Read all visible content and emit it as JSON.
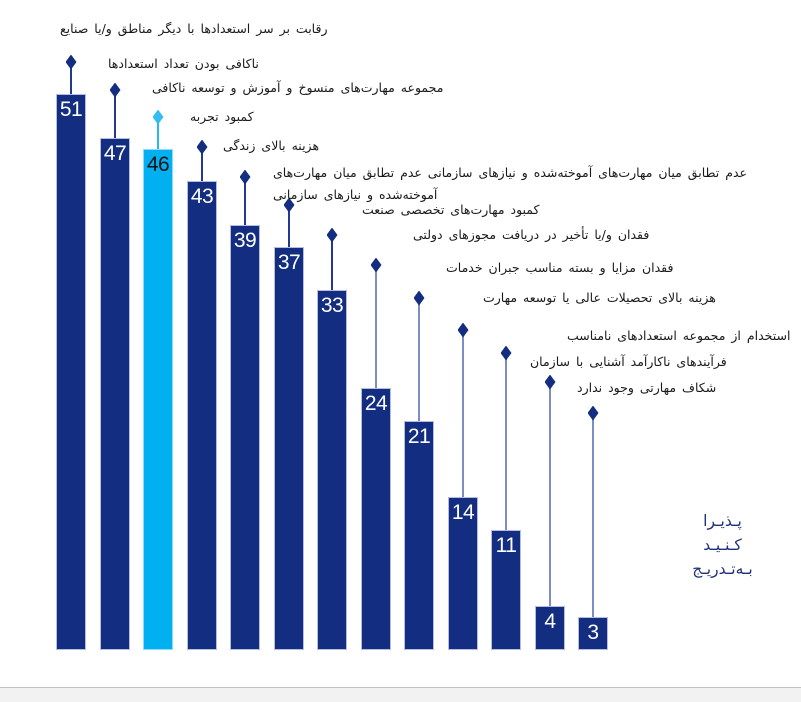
{
  "chart_data": {
    "type": "bar",
    "title": "",
    "orientation": "vertical",
    "grid": false,
    "legend": false,
    "ylim": [
      0,
      51
    ],
    "categories": [
      "رقابت بر سر استعدادها با دیگر مناطق و/یا صنایع",
      "ناکافی بودن تعداد استعدادها",
      "مجموعه مهارت‌های منسوخ و آموزش و توسعه ناکافی",
      "کمبود تجربه",
      "هزینه بالای زندگی",
      "عدم تطابق میان مهارت‌های آموخته‌شده و نیازهای سازمانی عدم تطابق میان مهارت‌های آموخته‌شده و نیازهای سازمانی",
      "کمبود مهارت‌های تخصصی صنعت",
      "فقدان و/یا تأخیر در دریافت مجوزهای دولتی",
      "فقدان مزایا و بسته مناسب جبران خدمات",
      "هزینه بالای تحصیلات عالی یا توسعه مهارت",
      "استخدام از مجموعه استعدادهای نامناسب",
      "فرآیندهای ناکارآمد آشنایی با سازمان",
      "شکاف مهارتی وجود ندارد"
    ],
    "values": [
      51,
      47,
      46,
      43,
      39,
      37,
      33,
      24,
      21,
      14,
      11,
      4,
      3
    ],
    "highlight_index": 2,
    "highlighted_category": "مجموعه مهارت‌های منسوخ و آموزش و توسعه ناکافی",
    "marker": "diamond",
    "annotation": {
      "lines": [
        "پـذیـرا",
        "کـنـیـد",
        "بـه‌تـدریـج"
      ],
      "position": "bottom-right"
    }
  },
  "colors": {
    "bar": "#132d80",
    "bar_highlight": "#00b0f0",
    "diamond": "#132d80",
    "diamond_highlight": "#33bdf3",
    "stem_dark": "#24388f",
    "stem_light": "#7d8cc7",
    "stem_highlight": "#29b6f2",
    "value_on_bar": "#ffffff",
    "value_on_highlight": "#111111",
    "label_text": "#1a1a1a",
    "note_text": "#1f2f7a"
  }
}
